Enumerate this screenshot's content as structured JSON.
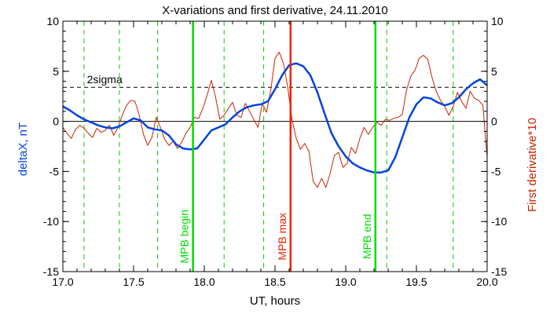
{
  "chart_data": {
    "type": "line",
    "title": "X-variations and first derivative, 24.11.2010",
    "xlabel": "UT, hours",
    "ylabel_left": "deltaX, nT",
    "ylabel_right": "First derivative*10",
    "xlim": [
      17.0,
      20.0
    ],
    "ylim": [
      -15,
      10
    ],
    "x_ticks": [
      17.0,
      17.5,
      18.0,
      18.5,
      19.0,
      19.5,
      20.0
    ],
    "x_tick_labels": [
      "17.0",
      "17.5",
      "18.0",
      "18.5",
      "19.0",
      "19.5",
      "20.0"
    ],
    "y_ticks": [
      -15,
      -10,
      -5,
      0,
      5,
      10
    ],
    "y_tick_labels": [
      "-15",
      "-10",
      "-5",
      "0",
      "5",
      "10"
    ],
    "zero_line": 0,
    "threshold": {
      "label": "2sigma",
      "value": 3.4
    },
    "dashed_verticals": [
      17.15,
      17.4,
      17.67,
      18.14,
      18.42,
      19.29,
      19.76
    ],
    "events": [
      {
        "label": "MPB begin",
        "x": 17.92,
        "color": "#00dd00"
      },
      {
        "label": "MPB max",
        "x": 18.61,
        "color": "#ee2200"
      },
      {
        "label": "MPB end",
        "x": 19.21,
        "color": "#00dd00"
      }
    ],
    "series": [
      {
        "name": "deltaX, nT",
        "color": "#0044dd",
        "x": [
          17.0,
          17.05,
          17.1,
          17.15,
          17.2,
          17.25,
          17.3,
          17.35,
          17.4,
          17.45,
          17.5,
          17.55,
          17.6,
          17.65,
          17.7,
          17.75,
          17.8,
          17.85,
          17.9,
          17.95,
          18.0,
          18.05,
          18.1,
          18.15,
          18.2,
          18.25,
          18.3,
          18.35,
          18.4,
          18.45,
          18.5,
          18.55,
          18.6,
          18.65,
          18.7,
          18.75,
          18.8,
          18.85,
          18.9,
          18.95,
          19.0,
          19.05,
          19.1,
          19.15,
          19.2,
          19.25,
          19.3,
          19.35,
          19.4,
          19.45,
          19.5,
          19.55,
          19.6,
          19.65,
          19.7,
          19.75,
          19.8,
          19.85,
          19.9,
          19.95,
          20.0
        ],
        "values": [
          1.5,
          1.1,
          0.6,
          0.2,
          -0.1,
          -0.4,
          -0.6,
          -0.7,
          -0.5,
          -0.1,
          0.3,
          0.1,
          -0.6,
          -0.8,
          -0.9,
          -1.4,
          -2.3,
          -2.7,
          -2.8,
          -2.7,
          -1.8,
          -0.9,
          -0.6,
          -0.3,
          0.4,
          1.0,
          1.4,
          1.6,
          1.7,
          2.0,
          3.2,
          4.6,
          5.6,
          5.8,
          5.5,
          4.6,
          2.9,
          0.8,
          -1.2,
          -2.5,
          -3.5,
          -4.2,
          -4.6,
          -4.9,
          -5.1,
          -5.1,
          -4.9,
          -3.6,
          -1.6,
          0.4,
          1.7,
          2.4,
          2.3,
          1.9,
          1.6,
          1.8,
          2.4,
          3.2,
          3.8,
          4.2,
          3.6
        ]
      },
      {
        "name": "First derivative*10",
        "color": "#cc2200",
        "x": [
          17.0,
          17.03,
          17.06,
          17.09,
          17.12,
          17.15,
          17.18,
          17.21,
          17.24,
          17.27,
          17.3,
          17.33,
          17.36,
          17.39,
          17.42,
          17.45,
          17.48,
          17.51,
          17.54,
          17.57,
          17.6,
          17.63,
          17.66,
          17.69,
          17.72,
          17.75,
          17.78,
          17.81,
          17.84,
          17.87,
          17.9,
          17.93,
          17.96,
          17.99,
          18.02,
          18.05,
          18.08,
          18.11,
          18.14,
          18.17,
          18.2,
          18.23,
          18.26,
          18.29,
          18.32,
          18.35,
          18.38,
          18.41,
          18.44,
          18.47,
          18.5,
          18.53,
          18.56,
          18.59,
          18.62,
          18.65,
          18.68,
          18.71,
          18.74,
          18.77,
          18.8,
          18.83,
          18.86,
          18.89,
          18.92,
          18.95,
          18.98,
          19.01,
          19.04,
          19.07,
          19.1,
          19.13,
          19.16,
          19.19,
          19.22,
          19.25,
          19.28,
          19.31,
          19.34,
          19.37,
          19.4,
          19.43,
          19.46,
          19.49,
          19.52,
          19.55,
          19.58,
          19.61,
          19.64,
          19.67,
          19.7,
          19.73,
          19.76,
          19.79,
          19.82,
          19.85,
          19.88,
          19.91,
          19.94,
          19.97,
          20.0
        ],
        "values": [
          -0.6,
          -1.2,
          -1.7,
          -0.8,
          -0.4,
          -0.7,
          -1.2,
          -1.6,
          -0.7,
          -1.1,
          -0.9,
          -0.4,
          -1.4,
          -0.6,
          0.6,
          1.6,
          2.1,
          2.0,
          0.6,
          -1.3,
          -2.4,
          -1.6,
          0.4,
          -0.6,
          -1.8,
          -2.4,
          -2.0,
          -2.7,
          -2.1,
          -1.2,
          -0.6,
          0.4,
          0.3,
          1.3,
          2.6,
          4.1,
          2.4,
          0.2,
          0.6,
          1.3,
          1.9,
          0.6,
          0.4,
          1.8,
          1.0,
          0.2,
          -0.6,
          1.8,
          0.9,
          3.1,
          6.3,
          6.9,
          5.8,
          3.4,
          0.2,
          -1.7,
          -2.8,
          -2.2,
          -3.0,
          -6.0,
          -6.6,
          -5.7,
          -6.6,
          -5.2,
          -3.4,
          -3.1,
          -4.6,
          -4.2,
          -2.6,
          -3.2,
          -1.7,
          -0.6,
          -1.3,
          -0.6,
          -0.1,
          -0.4,
          0.2,
          0.1,
          0.3,
          0.4,
          0.7,
          3.1,
          4.5,
          5.1,
          6.3,
          6.6,
          6.2,
          4.4,
          3.0,
          2.1,
          1.5,
          0.6,
          1.5,
          2.9,
          2.0,
          1.3,
          3.0,
          2.3,
          2.1,
          1.6,
          -3.6
        ]
      }
    ]
  }
}
